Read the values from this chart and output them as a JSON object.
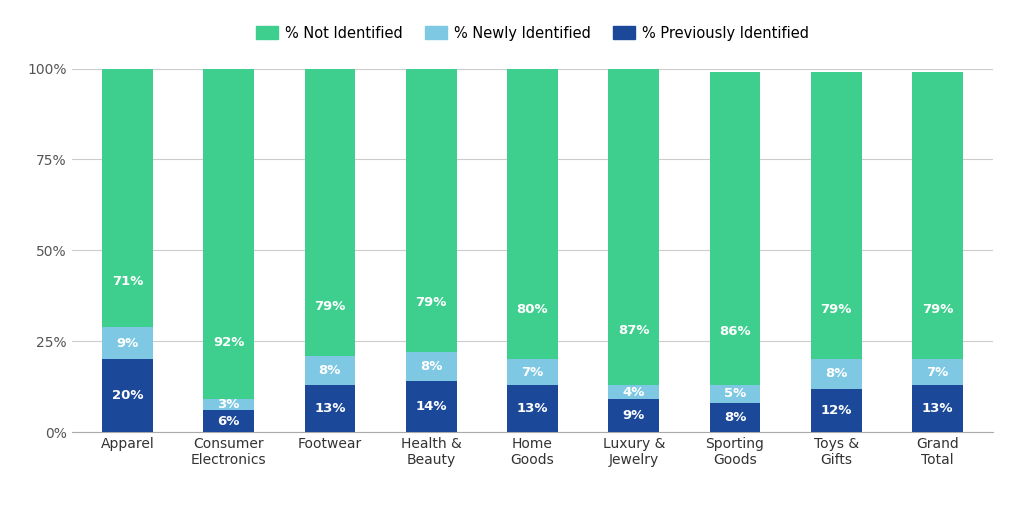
{
  "categories": [
    "Apparel",
    "Consumer\nElectronics",
    "Footwear",
    "Health &\nBeauty",
    "Home\nGoods",
    "Luxury &\nJewelry",
    "Sporting\nGoods",
    "Toys &\nGifts",
    "Grand\nTotal"
  ],
  "not_identified": [
    71,
    92,
    79,
    79,
    80,
    87,
    86,
    79,
    79
  ],
  "newly_identified": [
    9,
    3,
    8,
    8,
    7,
    4,
    5,
    8,
    7
  ],
  "prev_identified": [
    20,
    6,
    13,
    14,
    13,
    9,
    8,
    12,
    13
  ],
  "not_identified_labels": [
    "71%",
    "92%",
    "79%",
    "79%",
    "80%",
    "87%",
    "86%",
    "79%",
    "79%"
  ],
  "newly_identified_labels": [
    "9%",
    "3%",
    "8%",
    "8%",
    "7%",
    "4%",
    "5%",
    "8%",
    "7%"
  ],
  "prev_identified_labels": [
    "20%",
    "6%",
    "13%",
    "14%",
    "13%",
    "9%",
    "8%",
    "12%",
    "13%"
  ],
  "color_not_identified": "#3ecf8e",
  "color_newly_identified": "#7ec8e3",
  "color_prev_identified": "#1b4899",
  "background_color": "#ffffff",
  "grid_color": "#cccccc",
  "legend_labels": [
    "% Not Identified",
    "% Newly Identified",
    "% Previously Identified"
  ],
  "yticks": [
    0,
    25,
    50,
    75,
    100
  ],
  "ytick_labels": [
    "0%",
    "25%",
    "50%",
    "75%",
    "100%"
  ],
  "bar_width": 0.5,
  "label_fontsize": 9.5,
  "legend_fontsize": 10.5,
  "tick_fontsize": 10
}
